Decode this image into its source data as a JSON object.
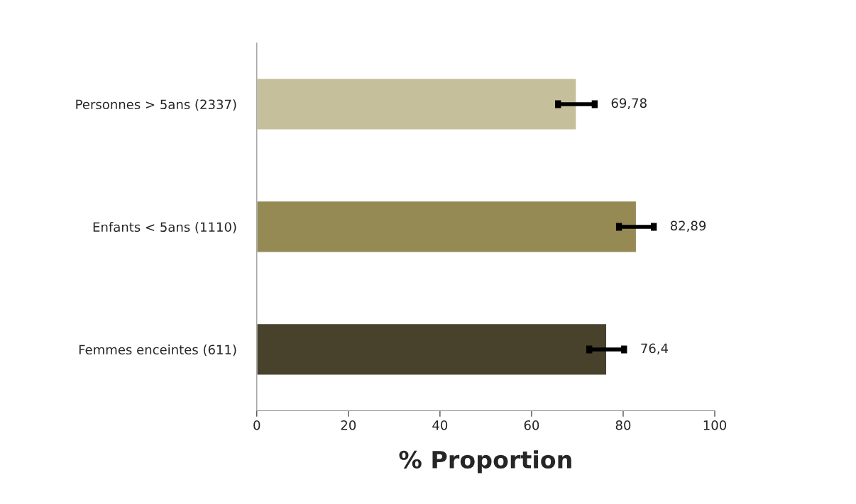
{
  "chart_data": {
    "type": "bar",
    "orientation": "horizontal",
    "xlabel": "% Proportion",
    "categories": [
      "Personnes > 5ans (2337)",
      "Enfants < 5ans (1110)",
      "Femmes enceintes (611)"
    ],
    "values": [
      69.78,
      82.89,
      76.4
    ],
    "colors": [
      "#c6bf9b",
      "#968a54",
      "#48422c"
    ],
    "errors": [
      4,
      3.8,
      3.8
    ],
    "value_labels": [
      "69,78",
      "82,89",
      "76,4"
    ],
    "xlim": [
      0,
      100
    ],
    "xticks": [
      0,
      20,
      40,
      60,
      80,
      100
    ],
    "grid": false,
    "legend": false
  }
}
